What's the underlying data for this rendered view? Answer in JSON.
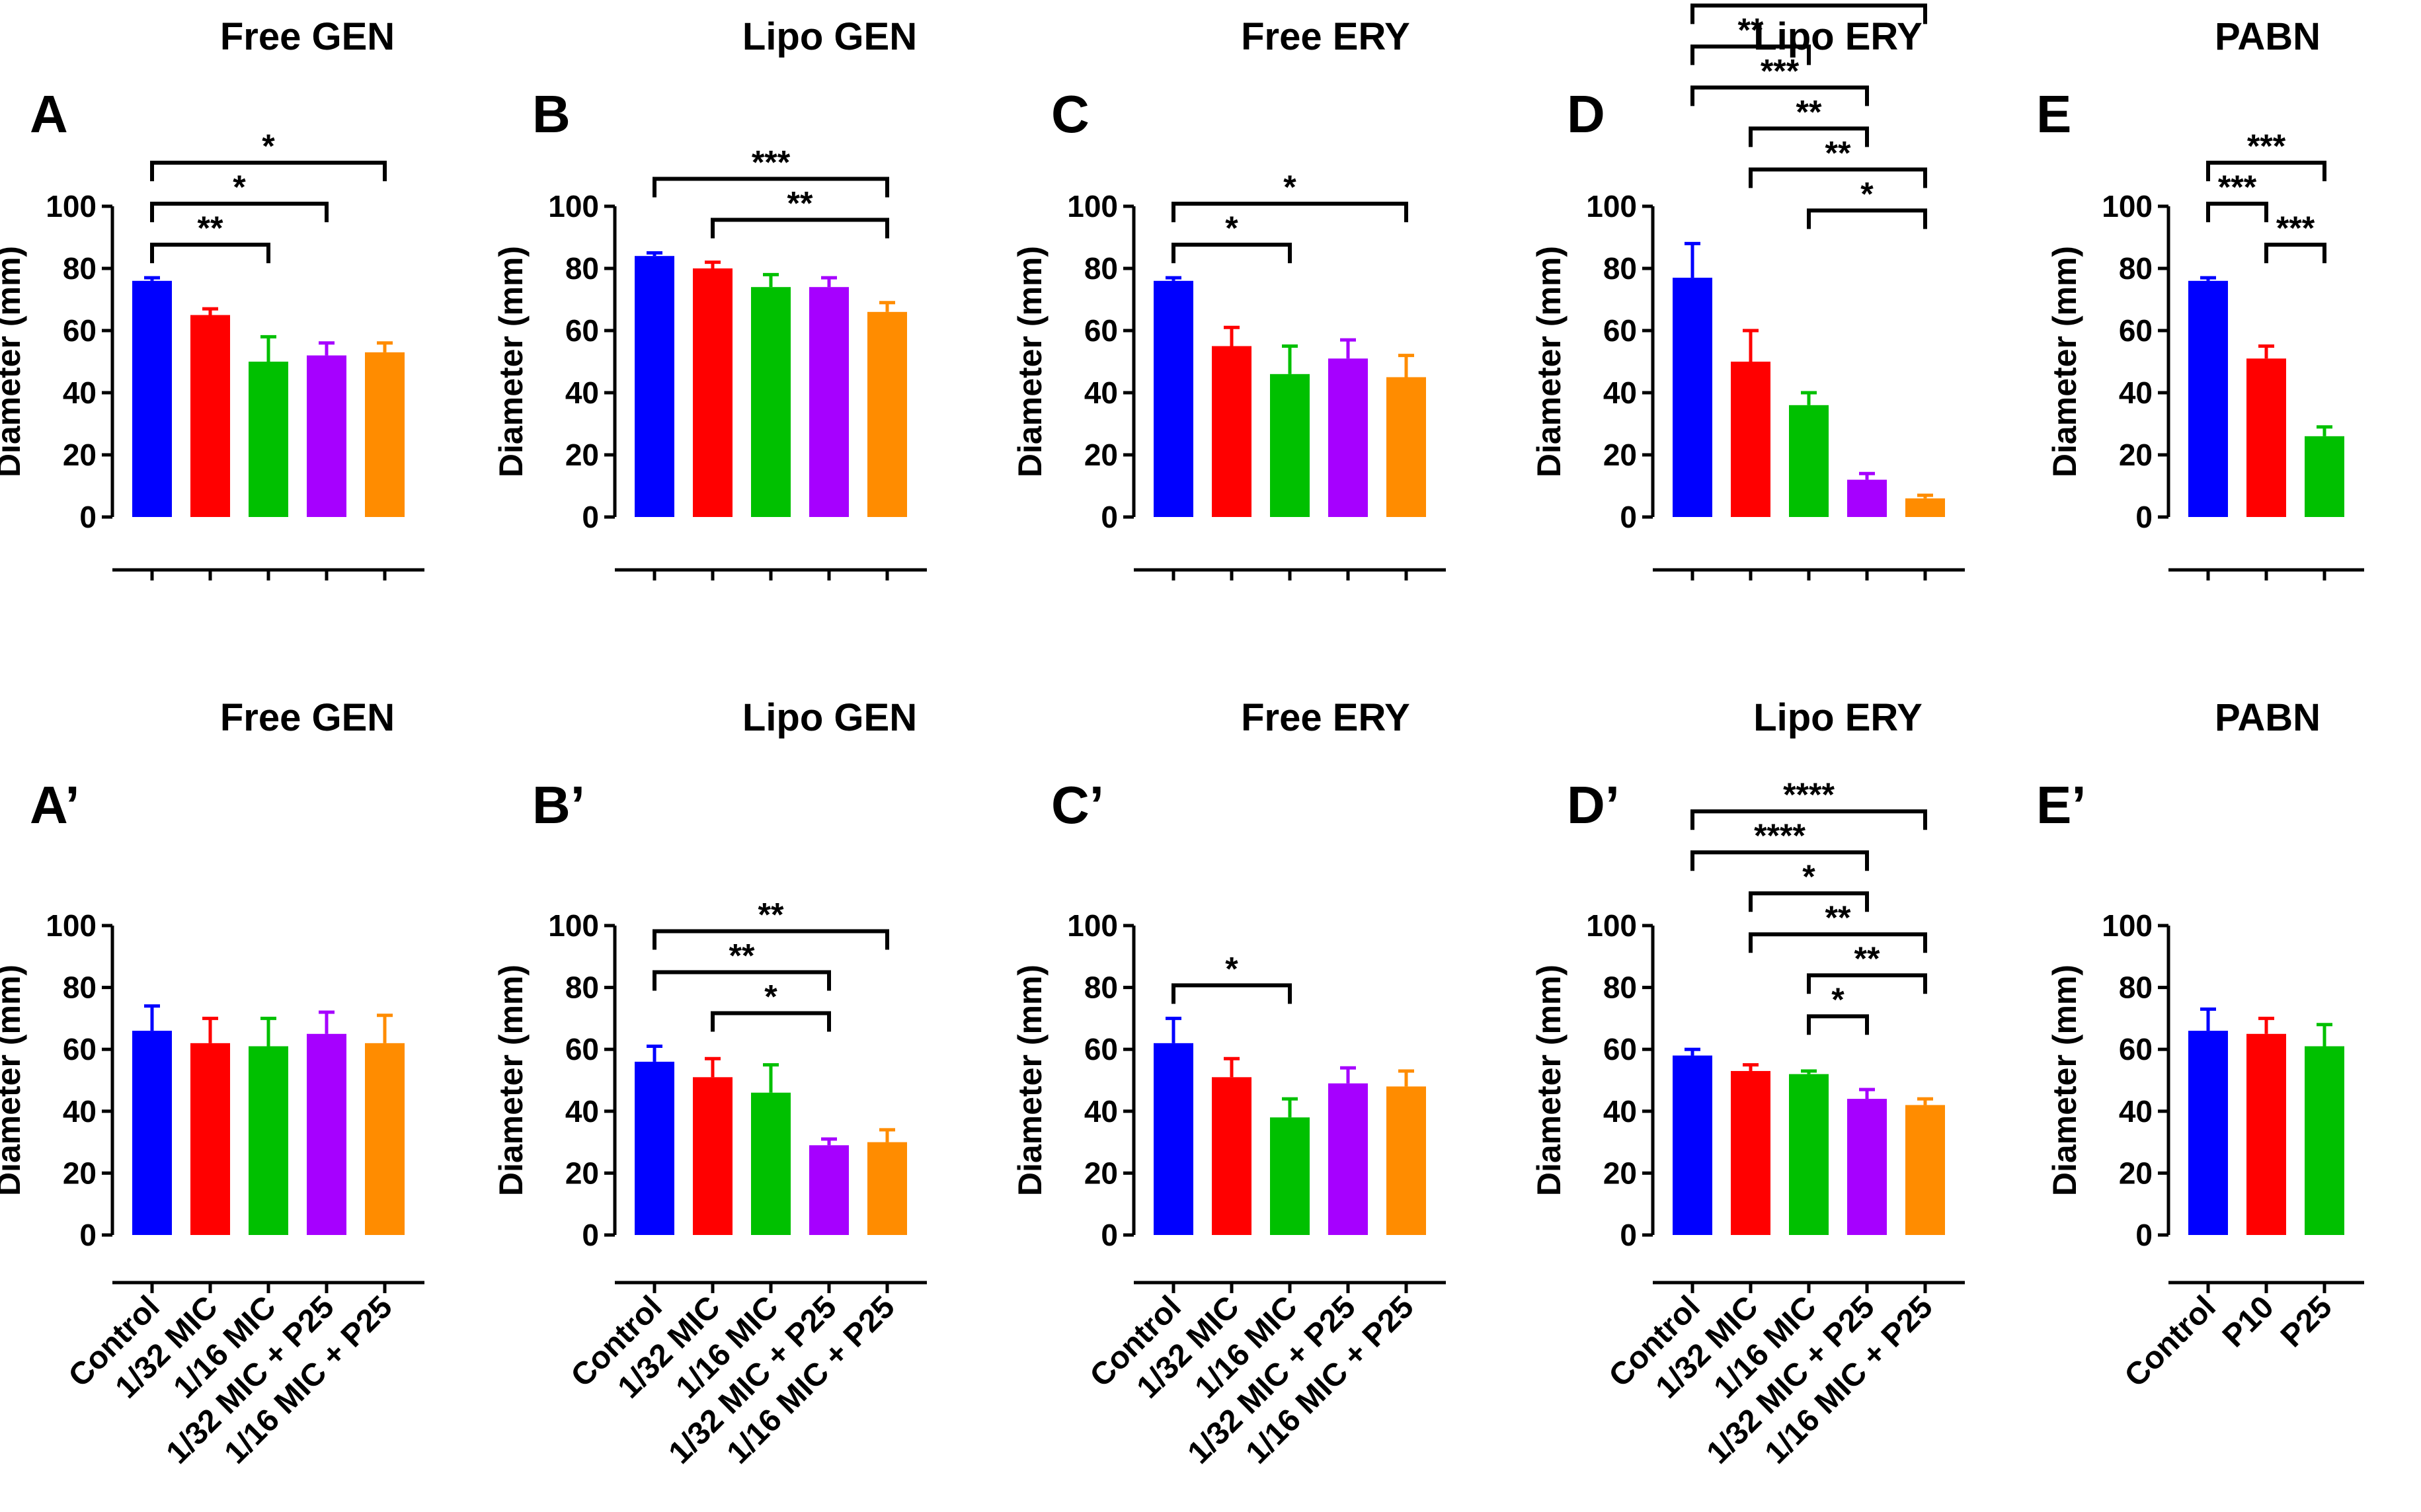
{
  "colors": {
    "blue": "#0000ff",
    "red": "#ff0000",
    "green": "#00c000",
    "purple": "#a600ff",
    "orange": "#ff8c00"
  },
  "chart_data": [
    {
      "id": "A",
      "type": "bar",
      "letter": "A",
      "title": "Free GEN",
      "ylabel": "Diameter (mm)",
      "ylim": [
        0,
        100
      ],
      "yticks": [
        0,
        20,
        40,
        60,
        80,
        100
      ],
      "categories": [
        "Control",
        "1/32 MIC",
        "1/16 MIC",
        "1/32 MIC + P25",
        "1/16 MIC + P25"
      ],
      "show_categories": false,
      "values": [
        76,
        65,
        50,
        52,
        53
      ],
      "errors": [
        1,
        2,
        8,
        4,
        3
      ],
      "colors": [
        "#0000ff",
        "#ff0000",
        "#00c000",
        "#a600ff",
        "#ff8c00"
      ],
      "significance": [
        {
          "from": 0,
          "to": 2,
          "label": "**"
        },
        {
          "from": 0,
          "to": 3,
          "label": "*"
        },
        {
          "from": 0,
          "to": 4,
          "label": "*"
        }
      ]
    },
    {
      "id": "B",
      "type": "bar",
      "letter": "B",
      "title": "Lipo GEN",
      "ylabel": "Diameter (mm)",
      "ylim": [
        0,
        100
      ],
      "yticks": [
        0,
        20,
        40,
        60,
        80,
        100
      ],
      "categories": [
        "Control",
        "1/32 MIC",
        "1/16 MIC",
        "1/32 MIC + P25",
        "1/16 MIC + P25"
      ],
      "show_categories": false,
      "values": [
        84,
        80,
        74,
        74,
        66
      ],
      "errors": [
        1,
        2,
        4,
        3,
        3
      ],
      "colors": [
        "#0000ff",
        "#ff0000",
        "#00c000",
        "#a600ff",
        "#ff8c00"
      ],
      "significance": [
        {
          "from": 1,
          "to": 4,
          "label": "**"
        },
        {
          "from": 0,
          "to": 4,
          "label": "***"
        }
      ]
    },
    {
      "id": "C",
      "type": "bar",
      "letter": "C",
      "title": "Free ERY",
      "ylabel": "Diameter (mm)",
      "ylim": [
        0,
        100
      ],
      "yticks": [
        0,
        20,
        40,
        60,
        80,
        100
      ],
      "categories": [
        "Control",
        "1/32 MIC",
        "1/16 MIC",
        "1/32 MIC + P25",
        "1/16 MIC + P25"
      ],
      "show_categories": false,
      "values": [
        76,
        55,
        46,
        51,
        45
      ],
      "errors": [
        1,
        6,
        9,
        6,
        7
      ],
      "colors": [
        "#0000ff",
        "#ff0000",
        "#00c000",
        "#a600ff",
        "#ff8c00"
      ],
      "significance": [
        {
          "from": 0,
          "to": 2,
          "label": "*"
        },
        {
          "from": 0,
          "to": 4,
          "label": "*"
        }
      ]
    },
    {
      "id": "D",
      "type": "bar",
      "letter": "D",
      "title": "Lipo ERY",
      "ylabel": "Diameter (mm)",
      "ylim": [
        0,
        100
      ],
      "yticks": [
        0,
        20,
        40,
        60,
        80,
        100
      ],
      "categories": [
        "Control",
        "1/32 MIC",
        "1/16 MIC",
        "1/32 MIC + P25",
        "1/16 MIC + P25"
      ],
      "show_categories": false,
      "values": [
        77,
        50,
        36,
        12,
        6
      ],
      "errors": [
        11,
        10,
        4,
        2,
        1
      ],
      "colors": [
        "#0000ff",
        "#ff0000",
        "#00c000",
        "#a600ff",
        "#ff8c00"
      ],
      "significance": [
        {
          "from": 2,
          "to": 4,
          "label": "*"
        },
        {
          "from": 1,
          "to": 4,
          "label": "**"
        },
        {
          "from": 1,
          "to": 3,
          "label": "**"
        },
        {
          "from": 0,
          "to": 3,
          "label": "***"
        },
        {
          "from": 0,
          "to": 2,
          "label": "**"
        },
        {
          "from": 0,
          "to": 4,
          "label": "***"
        }
      ]
    },
    {
      "id": "E",
      "type": "bar",
      "letter": "E",
      "title": "PABN",
      "ylabel": "Diameter (mm)",
      "ylim": [
        0,
        100
      ],
      "yticks": [
        0,
        20,
        40,
        60,
        80,
        100
      ],
      "categories": [
        "Control",
        "P10",
        "P25"
      ],
      "show_categories": false,
      "values": [
        76,
        51,
        26
      ],
      "errors": [
        1,
        4,
        3
      ],
      "colors": [
        "#0000ff",
        "#ff0000",
        "#00c000"
      ],
      "significance": [
        {
          "from": 1,
          "to": 2,
          "label": "***"
        },
        {
          "from": 0,
          "to": 1,
          "label": "***"
        },
        {
          "from": 0,
          "to": 2,
          "label": "***"
        }
      ]
    },
    {
      "id": "A2",
      "type": "bar",
      "letter": "A’",
      "title": "Free GEN",
      "ylabel": "Diameter (mm)",
      "ylim": [
        0,
        100
      ],
      "yticks": [
        0,
        20,
        40,
        60,
        80,
        100
      ],
      "categories": [
        "Control",
        "1/32 MIC",
        "1/16 MIC",
        "1/32 MIC + P25",
        "1/16 MIC + P25"
      ],
      "show_categories": true,
      "values": [
        66,
        62,
        61,
        65,
        62
      ],
      "errors": [
        8,
        8,
        9,
        7,
        9
      ],
      "colors": [
        "#0000ff",
        "#ff0000",
        "#00c000",
        "#a600ff",
        "#ff8c00"
      ],
      "significance": []
    },
    {
      "id": "B2",
      "type": "bar",
      "letter": "B’",
      "title": "Lipo GEN",
      "ylabel": "Diameter (mm)",
      "ylim": [
        0,
        100
      ],
      "yticks": [
        0,
        20,
        40,
        60,
        80,
        100
      ],
      "categories": [
        "Control",
        "1/32 MIC",
        "1/16 MIC",
        "1/32 MIC + P25",
        "1/16 MIC + P25"
      ],
      "show_categories": true,
      "values": [
        56,
        51,
        46,
        29,
        30
      ],
      "errors": [
        5,
        6,
        9,
        2,
        4
      ],
      "colors": [
        "#0000ff",
        "#ff0000",
        "#00c000",
        "#a600ff",
        "#ff8c00"
      ],
      "significance": [
        {
          "from": 1,
          "to": 3,
          "label": "*"
        },
        {
          "from": 0,
          "to": 3,
          "label": "**"
        },
        {
          "from": 0,
          "to": 4,
          "label": "**"
        }
      ]
    },
    {
      "id": "C2",
      "type": "bar",
      "letter": "C’",
      "title": "Free ERY",
      "ylabel": "Diameter (mm)",
      "ylim": [
        0,
        100
      ],
      "yticks": [
        0,
        20,
        40,
        60,
        80,
        100
      ],
      "categories": [
        "Control",
        "1/32 MIC",
        "1/16 MIC",
        "1/32 MIC + P25",
        "1/16 MIC + P25"
      ],
      "show_categories": true,
      "values": [
        62,
        51,
        38,
        49,
        48
      ],
      "errors": [
        8,
        6,
        6,
        5,
        5
      ],
      "colors": [
        "#0000ff",
        "#ff0000",
        "#00c000",
        "#a600ff",
        "#ff8c00"
      ],
      "significance": [
        {
          "from": 0,
          "to": 2,
          "label": "*"
        }
      ]
    },
    {
      "id": "D2",
      "type": "bar",
      "letter": "D’",
      "title": "Lipo ERY",
      "ylabel": "Diameter (mm)",
      "ylim": [
        0,
        100
      ],
      "yticks": [
        0,
        20,
        40,
        60,
        80,
        100
      ],
      "categories": [
        "Control",
        "1/32 MIC",
        "1/16 MIC",
        "1/32 MIC + P25",
        "1/16 MIC + P25"
      ],
      "show_categories": true,
      "values": [
        58,
        53,
        52,
        44,
        42
      ],
      "errors": [
        2,
        2,
        1,
        3,
        2
      ],
      "colors": [
        "#0000ff",
        "#ff0000",
        "#00c000",
        "#a600ff",
        "#ff8c00"
      ],
      "significance": [
        {
          "from": 2,
          "to": 3,
          "label": "*"
        },
        {
          "from": 2,
          "to": 4,
          "label": "**"
        },
        {
          "from": 1,
          "to": 4,
          "label": "**"
        },
        {
          "from": 1,
          "to": 3,
          "label": "*"
        },
        {
          "from": 0,
          "to": 3,
          "label": "****"
        },
        {
          "from": 0,
          "to": 4,
          "label": "****"
        }
      ]
    },
    {
      "id": "E2",
      "type": "bar",
      "letter": "E’",
      "title": "PABN",
      "ylabel": "Diameter (mm)",
      "ylim": [
        0,
        100
      ],
      "yticks": [
        0,
        20,
        40,
        60,
        80,
        100
      ],
      "categories": [
        "Control",
        "P10",
        "P25"
      ],
      "show_categories": true,
      "values": [
        66,
        65,
        61
      ],
      "errors": [
        7,
        5,
        7
      ],
      "colors": [
        "#0000ff",
        "#ff0000",
        "#00c000"
      ],
      "significance": []
    }
  ]
}
